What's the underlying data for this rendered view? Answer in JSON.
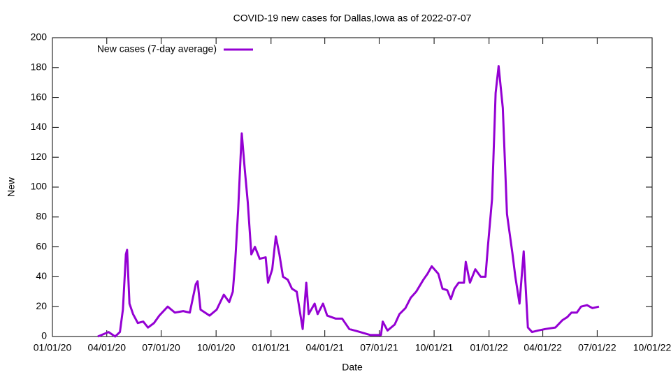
{
  "chart_data": {
    "type": "line",
    "title": "COVID-19 new cases for Dallas,Iowa as of 2022-07-07",
    "x_label": "Date",
    "y_label": "New",
    "legend": "top left",
    "x": [
      "2020-03-17",
      "2020-04-04",
      "2020-04-15",
      "2020-04-23",
      "2020-04-28",
      "2020-05-03",
      "2020-05-05",
      "2020-05-09",
      "2020-05-15",
      "2020-05-23",
      "2020-06-01",
      "2020-06-09",
      "2020-06-19",
      "2020-06-28",
      "2020-07-12",
      "2020-07-24",
      "2020-08-07",
      "2020-08-18",
      "2020-08-28",
      "2020-08-31",
      "2020-09-05",
      "2020-09-20",
      "2020-10-02",
      "2020-10-14",
      "2020-10-23",
      "2020-10-29",
      "2020-11-02",
      "2020-11-07",
      "2020-11-11",
      "2020-11-13",
      "2020-11-18",
      "2020-11-23",
      "2020-11-29",
      "2020-12-05",
      "2020-12-13",
      "2020-12-23",
      "2020-12-27",
      "2021-01-03",
      "2021-01-09",
      "2021-01-15",
      "2021-01-21",
      "2021-01-29",
      "2021-02-05",
      "2021-02-13",
      "2021-02-23",
      "2021-03-01",
      "2021-03-05",
      "2021-03-15",
      "2021-03-20",
      "2021-03-29",
      "2021-04-05",
      "2021-04-19",
      "2021-04-30",
      "2021-05-12",
      "2021-05-30",
      "2021-06-16",
      "2021-07-04",
      "2021-07-07",
      "2021-07-15",
      "2021-07-27",
      "2021-08-04",
      "2021-08-14",
      "2021-08-23",
      "2021-09-01",
      "2021-09-13",
      "2021-09-20",
      "2021-09-27",
      "2021-10-08",
      "2021-10-15",
      "2021-10-23",
      "2021-10-29",
      "2021-11-04",
      "2021-11-11",
      "2021-11-20",
      "2021-11-23",
      "2021-11-30",
      "2021-12-09",
      "2021-12-18",
      "2021-12-26",
      "2021-12-30",
      "2022-01-06",
      "2022-01-12",
      "2022-01-17",
      "2022-01-24",
      "2022-01-31",
      "2022-02-09",
      "2022-02-14",
      "2022-02-21",
      "2022-02-28",
      "2022-03-07",
      "2022-03-14",
      "2022-03-24",
      "2022-04-05",
      "2022-04-22",
      "2022-05-04",
      "2022-05-12",
      "2022-05-19",
      "2022-05-28",
      "2022-06-04",
      "2022-06-14",
      "2022-06-23",
      "2022-07-04"
    ],
    "series": [
      {
        "name": "New cases (7-day average)",
        "color": "#9400d3",
        "values": [
          0,
          3,
          0,
          3,
          18,
          55,
          58,
          22,
          15,
          9,
          10,
          6,
          9,
          14,
          20,
          16,
          17,
          16,
          35,
          37,
          18,
          14,
          18,
          28,
          23,
          30,
          50,
          85,
          120,
          136,
          112,
          90,
          55,
          60,
          52,
          53,
          36,
          45,
          67,
          55,
          40,
          38,
          32,
          30,
          5,
          36,
          15,
          22,
          15,
          22,
          14,
          12,
          12,
          5,
          3,
          1,
          1,
          10,
          4,
          8,
          15,
          19,
          26,
          30,
          38,
          42,
          47,
          42,
          32,
          31,
          25,
          32,
          36,
          36,
          50,
          36,
          45,
          40,
          40,
          60,
          92,
          163,
          181,
          153,
          82,
          56,
          40,
          22,
          57,
          6,
          3,
          4,
          5,
          6,
          11,
          13,
          16,
          16,
          20,
          21,
          19,
          20
        ]
      }
    ],
    "xlim": [
      "2020-01-01",
      "2022-10-01"
    ],
    "xticks": [
      {
        "value": "2020-01-01",
        "label": "01/01/20"
      },
      {
        "value": "2020-04-01",
        "label": "04/01/20"
      },
      {
        "value": "2020-07-01",
        "label": "07/01/20"
      },
      {
        "value": "2020-10-01",
        "label": "10/01/20"
      },
      {
        "value": "2021-01-01",
        "label": "01/01/21"
      },
      {
        "value": "2021-04-01",
        "label": "04/01/21"
      },
      {
        "value": "2021-07-01",
        "label": "07/01/21"
      },
      {
        "value": "2021-10-01",
        "label": "10/01/21"
      },
      {
        "value": "2022-01-01",
        "label": "01/01/22"
      },
      {
        "value": "2022-04-01",
        "label": "04/01/22"
      },
      {
        "value": "2022-07-01",
        "label": "07/01/22"
      },
      {
        "value": "2022-10-01",
        "label": "10/01/22"
      }
    ],
    "ylim": [
      0,
      200
    ],
    "yticks": [
      0,
      20,
      40,
      60,
      80,
      100,
      120,
      140,
      160,
      180,
      200
    ],
    "grid": false
  }
}
